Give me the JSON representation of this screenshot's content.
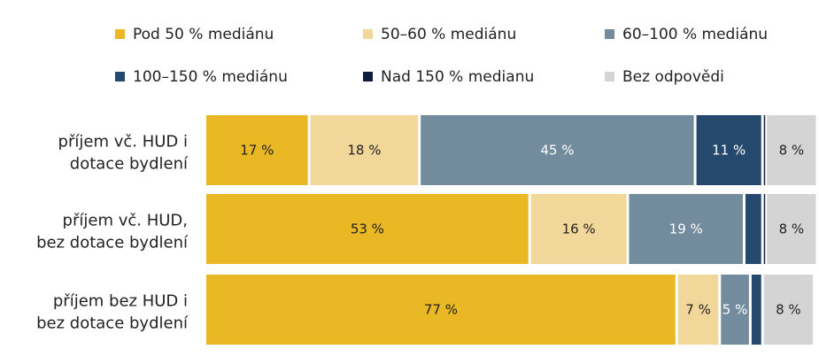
{
  "chart_data": {
    "type": "bar",
    "orientation": "horizontal",
    "stacked": true,
    "categories": [
      "příjem vč. HUD i dotace bydlení",
      "příjem vč. HUD, bez dotace bydlení",
      "příjem bez HUD i bez dotace bydlení"
    ],
    "series": [
      {
        "name": "Pod 50 % mediánu",
        "color": "#EBB825",
        "values": [
          17,
          53,
          77
        ],
        "labels": [
          "17 %",
          "53 %",
          "77 %"
        ],
        "label_color": "#222222"
      },
      {
        "name": "50–60 % mediánu",
        "color": "#F2D79A",
        "values": [
          18,
          16,
          7
        ],
        "labels": [
          "18 %",
          "16 %",
          "7 %"
        ],
        "label_color": "#222222"
      },
      {
        "name": "60–100 % mediánu",
        "color": "#738C9D",
        "values": [
          45,
          19,
          5
        ],
        "labels": [
          "45 %",
          "19 %",
          "5 %"
        ],
        "label_color": "#ffffff"
      },
      {
        "name": "100–150 % mediánu",
        "color": "#24496C",
        "values": [
          11,
          3,
          2
        ],
        "labels": [
          "11 %",
          "",
          ""
        ],
        "label_color": "#ffffff"
      },
      {
        "name": "Nad 150 % medianu",
        "color": "#0E1E3C",
        "values": [
          0.5,
          0.5,
          0
        ],
        "labels": [
          "",
          "",
          ""
        ],
        "label_color": "#ffffff"
      },
      {
        "name": "Bez odpovědi",
        "color": "#D4D4D4",
        "values": [
          8,
          8,
          8
        ],
        "labels": [
          "8 %",
          "8 %",
          "8 %"
        ],
        "label_color": "#222222"
      }
    ],
    "legend_position": "top",
    "grid": false
  }
}
